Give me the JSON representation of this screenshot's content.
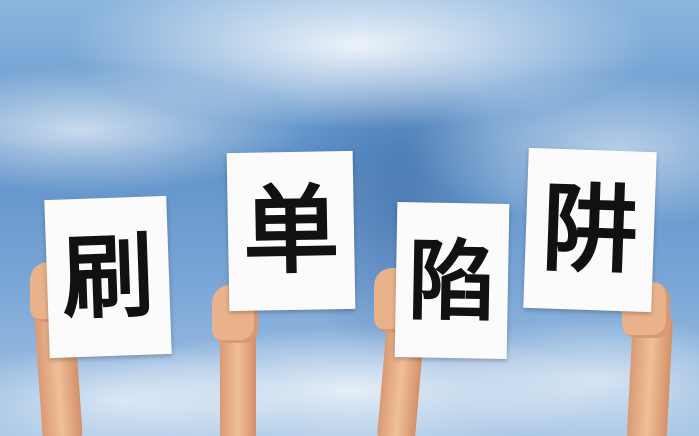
{
  "signs": [
    {
      "text": "刷"
    },
    {
      "text": "单"
    },
    {
      "text": "陷"
    },
    {
      "text": "阱"
    }
  ],
  "colors": {
    "sky": "#6f9fd0",
    "paper": "#fbfbfb",
    "ink": "#111111",
    "skin": "#eab28a"
  }
}
